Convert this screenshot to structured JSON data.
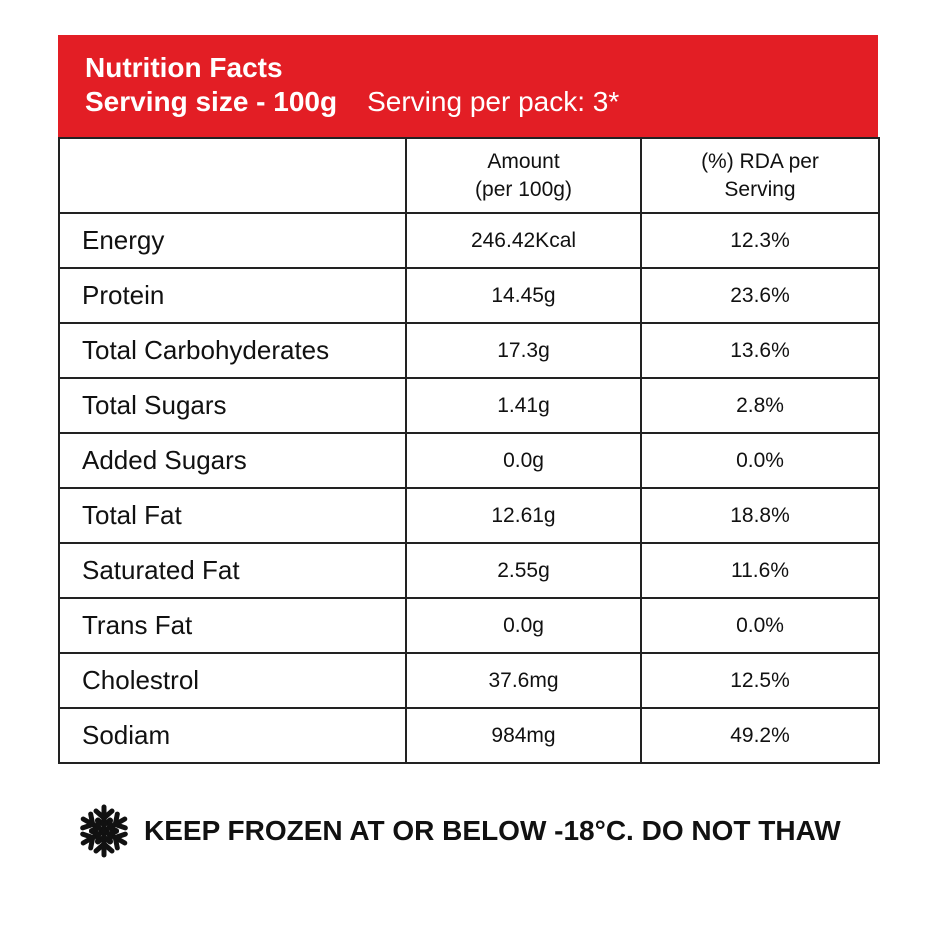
{
  "header": {
    "title": "Nutrition Facts",
    "serving_size": "Serving size - 100g",
    "servings_per_pack": "Serving per pack: 3*"
  },
  "table": {
    "columns": [
      "",
      "Amount\n(per 100g)",
      "(%) RDA per\nServing"
    ],
    "rows": [
      [
        "Energy",
        "246.42Kcal",
        "12.3%"
      ],
      [
        "Protein",
        "14.45g",
        "23.6%"
      ],
      [
        "Total Carbohyderates",
        "17.3g",
        "13.6%"
      ],
      [
        "Total Sugars",
        "1.41g",
        "2.8%"
      ],
      [
        "Added Sugars",
        "0.0g",
        "0.0%"
      ],
      [
        "Total Fat",
        "12.61g",
        "18.8%"
      ],
      [
        "Saturated Fat",
        "2.55g",
        "11.6%"
      ],
      [
        "Trans Fat",
        "0.0g",
        "0.0%"
      ],
      [
        "Cholestrol",
        "37.6mg",
        "12.5%"
      ],
      [
        "Sodiam",
        "984mg",
        "49.2%"
      ]
    ]
  },
  "footer": {
    "storage": "KEEP FROZEN AT OR BELOW -18°C. DO NOT THAW"
  }
}
